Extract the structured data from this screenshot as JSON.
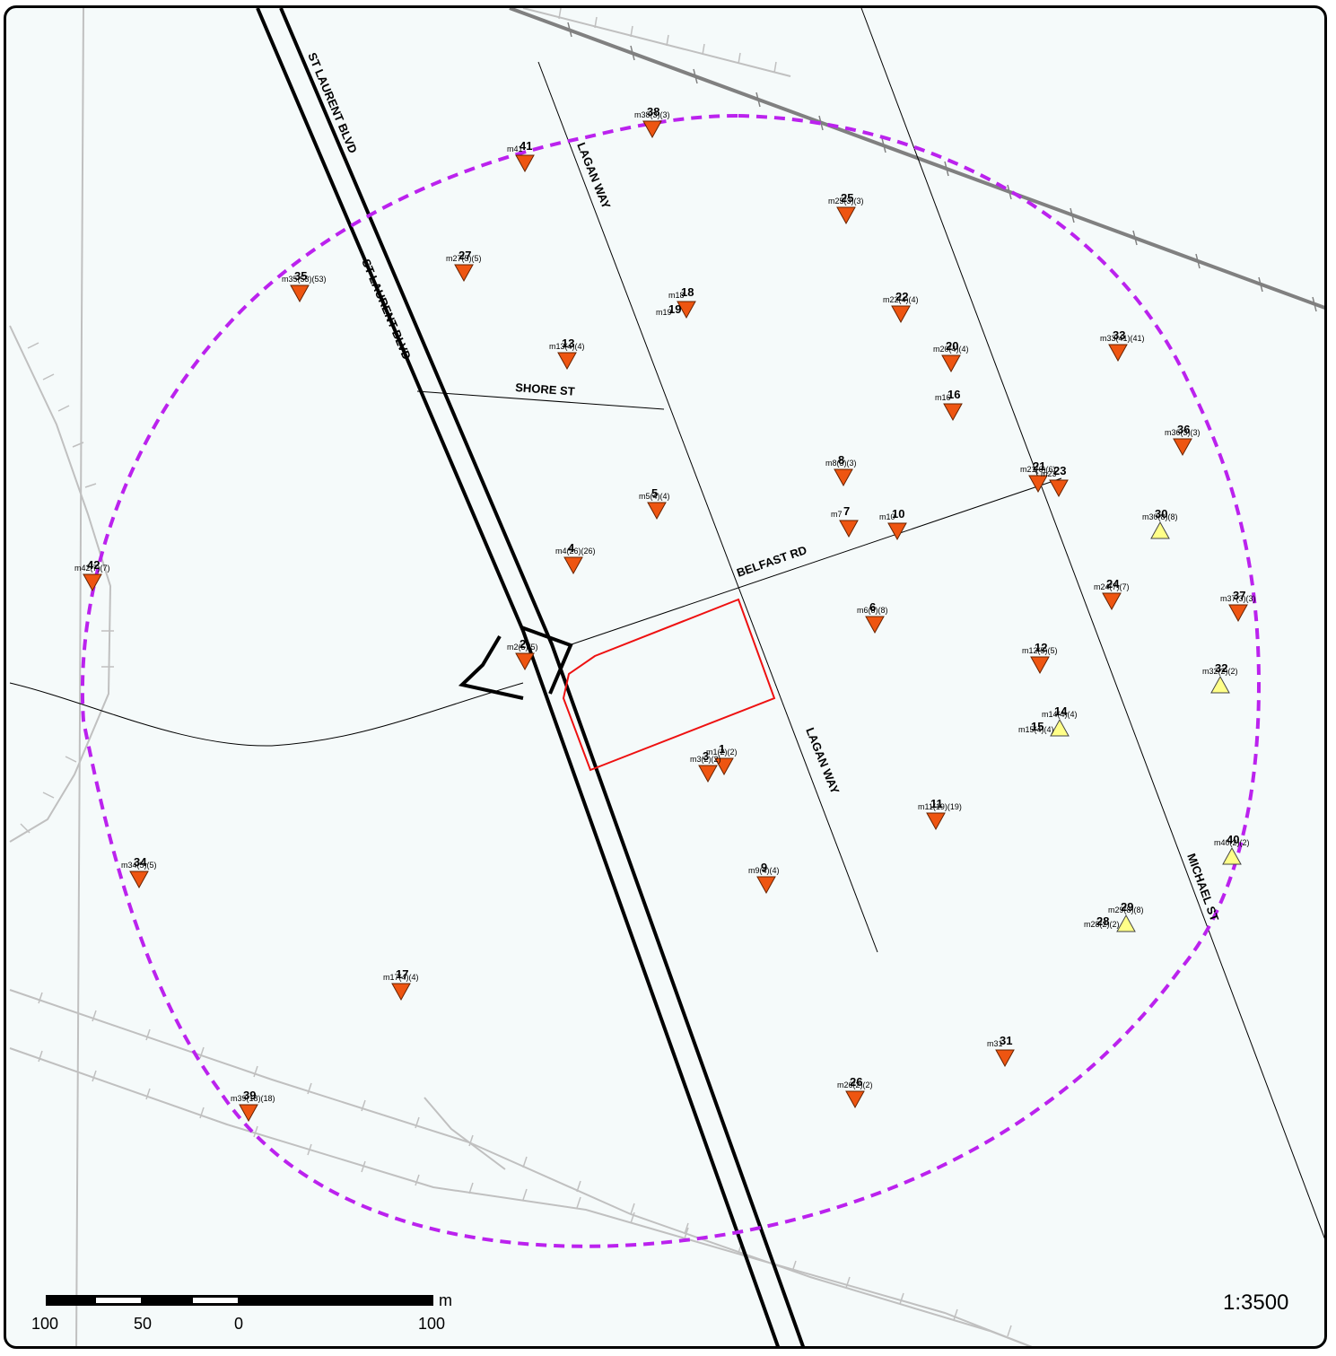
{
  "map": {
    "scale_ratio": "1:3500",
    "scale_unit": "m",
    "scale_ticks": [
      "100",
      "50",
      "0",
      "100"
    ],
    "colors": {
      "background": "#f5fafa",
      "search_radius": "#bb22ee",
      "site_boundary": "#ee1111",
      "marker_down": "#ee5511",
      "marker_up": "#ffff88",
      "rail": "#888888",
      "light_rail": "#c0c0c0"
    },
    "road_labels": [
      {
        "id": "st-laurent-1",
        "text": "ST LAURENT BLVD"
      },
      {
        "id": "st-laurent-2",
        "text": "ST LAURENT BLVD"
      },
      {
        "id": "lagan-1",
        "text": "LAGAN WAY"
      },
      {
        "id": "lagan-2",
        "text": "LAGAN WAY"
      },
      {
        "id": "shore",
        "text": "SHORE ST"
      },
      {
        "id": "belfast",
        "text": "BELFAST RD"
      },
      {
        "id": "michael",
        "text": "MICHAEL ST"
      }
    ],
    "markers": [
      {
        "num": "38",
        "sub": "m38(3)(3)",
        "dir": "down"
      },
      {
        "num": "41",
        "sub": "m41",
        "dir": "down"
      },
      {
        "num": "25",
        "sub": "m25(3)(3)",
        "dir": "down"
      },
      {
        "num": "27",
        "sub": "m27(5)(5)",
        "dir": "down"
      },
      {
        "num": "35",
        "sub": "m35(53)(53)",
        "dir": "down"
      },
      {
        "num": "18",
        "sub": "m18",
        "dir": "down"
      },
      {
        "num": "19",
        "sub": "m19",
        "dir": "none"
      },
      {
        "num": "22",
        "sub": "m22(4)(4)",
        "dir": "down"
      },
      {
        "num": "13",
        "sub": "m13(4)(4)",
        "dir": "down"
      },
      {
        "num": "20",
        "sub": "m20(4)(4)",
        "dir": "down"
      },
      {
        "num": "33",
        "sub": "m33(41)(41)",
        "dir": "down"
      },
      {
        "num": "16",
        "sub": "m16",
        "dir": "down"
      },
      {
        "num": "36",
        "sub": "m36(3)(3)",
        "dir": "down"
      },
      {
        "num": "8",
        "sub": "m8(3)(3)",
        "dir": "down"
      },
      {
        "num": "21",
        "sub": "m21(6)(6)",
        "dir": "down"
      },
      {
        "num": "23",
        "sub": "m23",
        "dir": "down"
      },
      {
        "num": "5",
        "sub": "m5(4)(4)",
        "dir": "down"
      },
      {
        "num": "7",
        "sub": "m7",
        "dir": "down"
      },
      {
        "num": "10",
        "sub": "m10",
        "dir": "down"
      },
      {
        "num": "30",
        "sub": "m30(8)(8)",
        "dir": "up"
      },
      {
        "num": "4",
        "sub": "m4(26)(26)",
        "dir": "down"
      },
      {
        "num": "42",
        "sub": "m42(7)(7)",
        "dir": "down"
      },
      {
        "num": "24",
        "sub": "m24(7)(7)",
        "dir": "down"
      },
      {
        "num": "37",
        "sub": "m37(3)(3)",
        "dir": "down"
      },
      {
        "num": "6",
        "sub": "m6(8)(8)",
        "dir": "down"
      },
      {
        "num": "2",
        "sub": "m2(5)(5)",
        "dir": "down"
      },
      {
        "num": "12",
        "sub": "m12(5)(5)",
        "dir": "down"
      },
      {
        "num": "32",
        "sub": "m32(2)(2)",
        "dir": "up"
      },
      {
        "num": "14",
        "sub": "m14(4)(4)",
        "dir": "up"
      },
      {
        "num": "15",
        "sub": "m15(4)(4)",
        "dir": "none"
      },
      {
        "num": "1",
        "sub": "m1(2)(2)",
        "dir": "down"
      },
      {
        "num": "3",
        "sub": "m3(2)(2)",
        "dir": "down"
      },
      {
        "num": "11",
        "sub": "m11(19)(19)",
        "dir": "down"
      },
      {
        "num": "40",
        "sub": "m40(2)(2)",
        "dir": "up"
      },
      {
        "num": "34",
        "sub": "m34(5)(5)",
        "dir": "down"
      },
      {
        "num": "9",
        "sub": "m9(4)(4)",
        "dir": "down"
      },
      {
        "num": "29",
        "sub": "m29(8)(8)",
        "dir": "up"
      },
      {
        "num": "28",
        "sub": "m28(2)(2)",
        "dir": "none"
      },
      {
        "num": "17",
        "sub": "m17(4)(4)",
        "dir": "down"
      },
      {
        "num": "31",
        "sub": "m31",
        "dir": "down"
      },
      {
        "num": "26",
        "sub": "m26(2)(2)",
        "dir": "down"
      },
      {
        "num": "39",
        "sub": "m39(18)(18)",
        "dir": "down"
      }
    ]
  }
}
